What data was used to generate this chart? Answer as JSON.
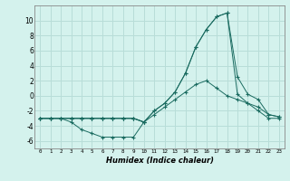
{
  "title": "",
  "xlabel": "Humidex (Indice chaleur)",
  "bg_color": "#d4f2ed",
  "grid_color": "#b8ddd8",
  "line_color": "#1a6b60",
  "xlim": [
    -0.5,
    23.5
  ],
  "ylim": [
    -7,
    12
  ],
  "xticks": [
    0,
    1,
    2,
    3,
    4,
    5,
    6,
    7,
    8,
    9,
    10,
    11,
    12,
    13,
    14,
    15,
    16,
    17,
    18,
    19,
    20,
    21,
    22,
    23
  ],
  "yticks": [
    -6,
    -4,
    -2,
    0,
    2,
    4,
    6,
    8,
    10
  ],
  "s1_x": [
    0,
    1,
    2,
    3,
    4,
    5,
    6,
    7,
    8,
    9,
    10
  ],
  "s1_y": [
    -3,
    -3,
    -3,
    -3.5,
    -4.5,
    -5,
    -5.5,
    -5.5,
    -5.5,
    -5.5,
    -3.5
  ],
  "s2_x": [
    0,
    1,
    2,
    3,
    4,
    5,
    6,
    7,
    8,
    9,
    10,
    11,
    12,
    13,
    14,
    15,
    16,
    17,
    18,
    19,
    20,
    21,
    22,
    23
  ],
  "s2_y": [
    -3,
    -3,
    -3,
    -3,
    -3,
    -3,
    -3,
    -3,
    -3,
    -3,
    -3.5,
    -2.5,
    -1.5,
    -0.5,
    0.5,
    1.5,
    2,
    1,
    0,
    -0.5,
    -1,
    -1.5,
    -2.5,
    -2.8
  ],
  "s3_x": [
    0,
    1,
    2,
    3,
    4,
    5,
    6,
    7,
    8,
    9,
    10,
    11,
    12,
    13,
    14,
    15,
    16,
    17,
    18,
    19,
    20,
    21,
    22,
    23
  ],
  "s3_y": [
    -3,
    -3,
    -3,
    -3,
    -3,
    -3,
    -3,
    -3,
    -3,
    -3,
    -3.5,
    -2,
    -1,
    0.5,
    3,
    6.5,
    8.8,
    10.5,
    11,
    2.5,
    0.2,
    -0.5,
    -2.5,
    -2.8
  ],
  "s4_x": [
    0,
    1,
    2,
    3,
    4,
    5,
    6,
    7,
    8,
    9,
    10,
    11,
    12,
    13,
    14,
    15,
    16,
    17,
    18,
    19,
    20,
    21,
    22,
    23
  ],
  "s4_y": [
    -3,
    -3,
    -3,
    -3,
    -3,
    -3,
    -3,
    -3,
    -3,
    -3,
    -3.5,
    -2,
    -1,
    0.5,
    3,
    6.5,
    8.8,
    10.5,
    11,
    0.2,
    -1,
    -2,
    -3,
    -3
  ]
}
